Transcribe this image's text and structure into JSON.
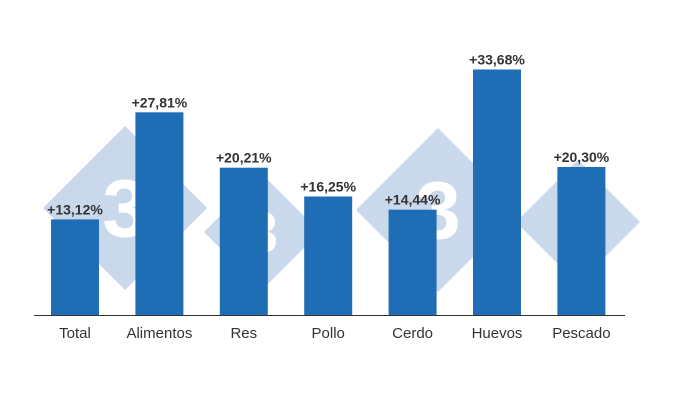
{
  "chart_data": {
    "type": "bar",
    "categories": [
      "Total",
      "Alimentos",
      "Res",
      "Pollo",
      "Cerdo",
      "Huevos",
      "Pescado"
    ],
    "values": [
      13.12,
      27.81,
      20.21,
      16.25,
      14.44,
      33.68,
      20.3
    ],
    "value_labels": [
      "+13,12%",
      "+27,81%",
      "+20,21%",
      "+16,25%",
      "+14,44%",
      "+33,68%",
      "+20,30%"
    ],
    "ylim": [
      0,
      38
    ],
    "grid": false,
    "legend": "none"
  },
  "colors": {
    "bar": "#1f6db5",
    "axis": "#333333",
    "watermark": "#c9d8ea"
  },
  "watermark": {
    "glyph": "3",
    "logo": "333"
  }
}
